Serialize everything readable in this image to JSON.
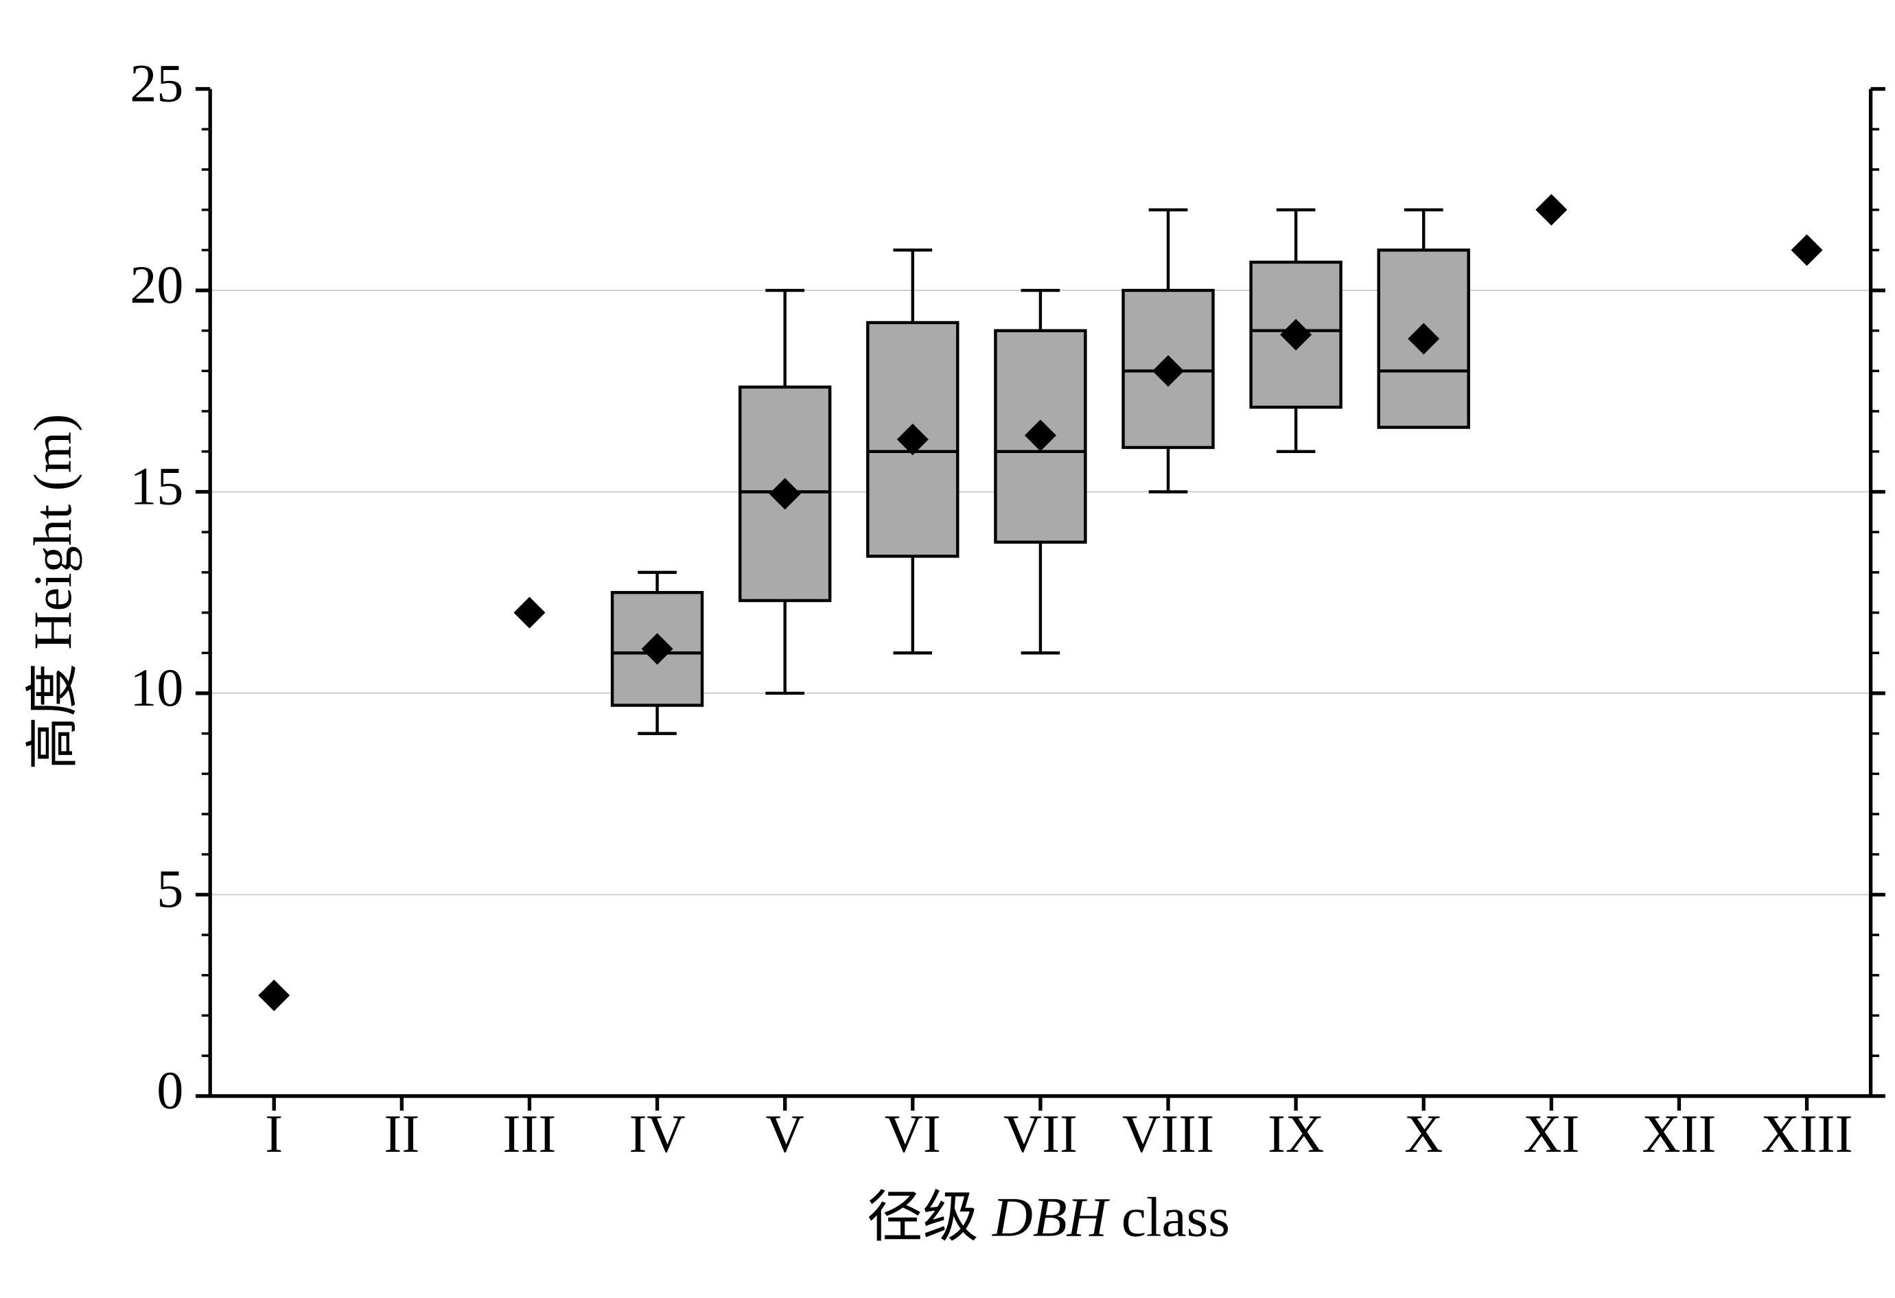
{
  "chart_data": {
    "type": "box",
    "xlabel": [
      "径级",
      "DBH",
      "class"
    ],
    "ylabel": "高度 Height (m)",
    "categories": [
      "I",
      "II",
      "III",
      "IV",
      "V",
      "VI",
      "VII",
      "VIII",
      "IX",
      "X",
      "XI",
      "XII",
      "XIII"
    ],
    "min": [
      null,
      null,
      null,
      9,
      10,
      11,
      11,
      15,
      16,
      17,
      null,
      null,
      null
    ],
    "q1": [
      null,
      null,
      null,
      9.7,
      12.3,
      13.4,
      13.75,
      16.1,
      17.1,
      16.6,
      null,
      null,
      null
    ],
    "median": [
      null,
      null,
      null,
      11,
      15,
      16,
      16,
      18,
      19,
      18,
      null,
      null,
      null
    ],
    "q3": [
      null,
      null,
      null,
      12.5,
      17.6,
      19.2,
      19.0,
      20.0,
      20.7,
      21.0,
      null,
      null,
      null
    ],
    "max": [
      null,
      null,
      null,
      13,
      20,
      21,
      20,
      22,
      22,
      22,
      null,
      null,
      null
    ],
    "mean": [
      2.5,
      null,
      12,
      11.1,
      14.95,
      16.3,
      16.4,
      18.0,
      18.9,
      18.8,
      22,
      null,
      21
    ],
    "box_color": "#aaaaaa",
    "mean_color": "#000000",
    "ylim": [
      0,
      25
    ],
    "yticks": [
      0,
      5,
      10,
      15,
      20,
      25
    ],
    "yminorticks": [
      1,
      2,
      3,
      4,
      6,
      7,
      8,
      9,
      11,
      12,
      13,
      14,
      16,
      17,
      18,
      19,
      21,
      22,
      23,
      24
    ],
    "grid": true
  }
}
